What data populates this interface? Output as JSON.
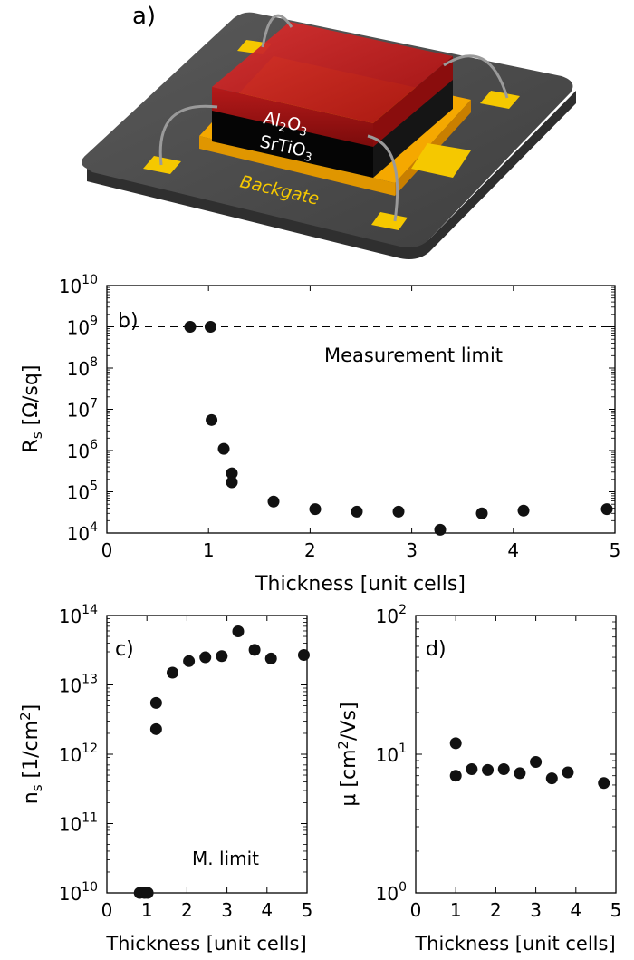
{
  "panel_a": {
    "label": "a)",
    "layer_top": "Al",
    "layer_top_sub1": "2",
    "layer_top_mid": "O",
    "layer_top_sub2": "3",
    "layer_mid": "SrTiO",
    "layer_mid_sub": "3",
    "backgate": "Backgate"
  },
  "chart_data": [
    {
      "id": "b",
      "type": "scatter",
      "panel_label": "b)",
      "xlabel": "Thickness [unit cells]",
      "ylabel_main": "R",
      "ylabel_sub": "s",
      "ylabel_tail": " [Ω/sq]",
      "log_y": true,
      "xlim": [
        0,
        5
      ],
      "ylim_exp": [
        4,
        10
      ],
      "x_ticks": [
        "0",
        "1",
        "2",
        "3",
        "4",
        "5"
      ],
      "y_tick_exps": [
        "4",
        "5",
        "6",
        "7",
        "8",
        "9",
        "10"
      ],
      "reference_line": {
        "value": 1000000000.0,
        "label": "Measurement limit"
      },
      "points": [
        [
          0.82,
          1000000000.0
        ],
        [
          1.02,
          1000000000.0
        ],
        [
          1.03,
          5500000.0
        ],
        [
          1.15,
          1100000.0
        ],
        [
          1.23,
          280000.0
        ],
        [
          1.23,
          170000.0
        ],
        [
          1.64,
          58000.0
        ],
        [
          2.05,
          38000.0
        ],
        [
          2.46,
          33000.0
        ],
        [
          2.87,
          33000.0
        ],
        [
          3.28,
          12000.0
        ],
        [
          3.69,
          30000.0
        ],
        [
          4.1,
          35000.0
        ],
        [
          4.92,
          38000.0
        ]
      ]
    },
    {
      "id": "c",
      "type": "scatter",
      "panel_label": "c)",
      "xlabel": "Thickness [unit cells]",
      "ylabel_main": "n",
      "ylabel_sub": "s",
      "ylabel_tail": " [1/cm",
      "ylabel_sup": "2",
      "ylabel_end": "]",
      "log_y": true,
      "xlim": [
        0,
        5
      ],
      "ylim_exp": [
        10,
        14
      ],
      "x_ticks": [
        "0",
        "1",
        "2",
        "3",
        "4",
        "5"
      ],
      "y_tick_exps": [
        "10",
        "11",
        "12",
        "13",
        "14"
      ],
      "reference_line": {
        "value": 10000000000.0,
        "label": "M. limit"
      },
      "points": [
        [
          0.82,
          10000000000.0
        ],
        [
          0.94,
          10000000000.0
        ],
        [
          1.02,
          10000000000.0
        ],
        [
          1.23,
          5500000000000.0
        ],
        [
          1.23,
          2300000000000.0
        ],
        [
          1.64,
          15000000000000.0
        ],
        [
          2.05,
          22000000000000.0
        ],
        [
          2.46,
          25000000000000.0
        ],
        [
          2.87,
          26000000000000.0
        ],
        [
          3.28,
          59000000000000.0
        ],
        [
          3.69,
          32000000000000.0
        ],
        [
          4.1,
          24000000000000.0
        ],
        [
          4.92,
          27000000000000.0
        ]
      ]
    },
    {
      "id": "d",
      "type": "scatter",
      "panel_label": "d)",
      "xlabel": "Thickness [unit cells]",
      "ylabel_main": "μ",
      "ylabel_tail": " [cm",
      "ylabel_sup": "2",
      "ylabel_end": "/Vs]",
      "log_y": true,
      "xlim": [
        0,
        5
      ],
      "ylim_exp": [
        0,
        2
      ],
      "x_ticks": [
        "0",
        "1",
        "2",
        "3",
        "4",
        "5"
      ],
      "y_tick_exps": [
        "0",
        "1",
        "2"
      ],
      "points": [
        [
          1.0,
          12
        ],
        [
          1.0,
          7.0
        ],
        [
          1.4,
          7.8
        ],
        [
          1.8,
          7.7
        ],
        [
          2.2,
          7.8
        ],
        [
          2.6,
          7.3
        ],
        [
          3.0,
          8.8
        ],
        [
          3.4,
          6.7
        ],
        [
          3.8,
          7.4
        ],
        [
          4.7,
          6.2
        ]
      ]
    }
  ]
}
